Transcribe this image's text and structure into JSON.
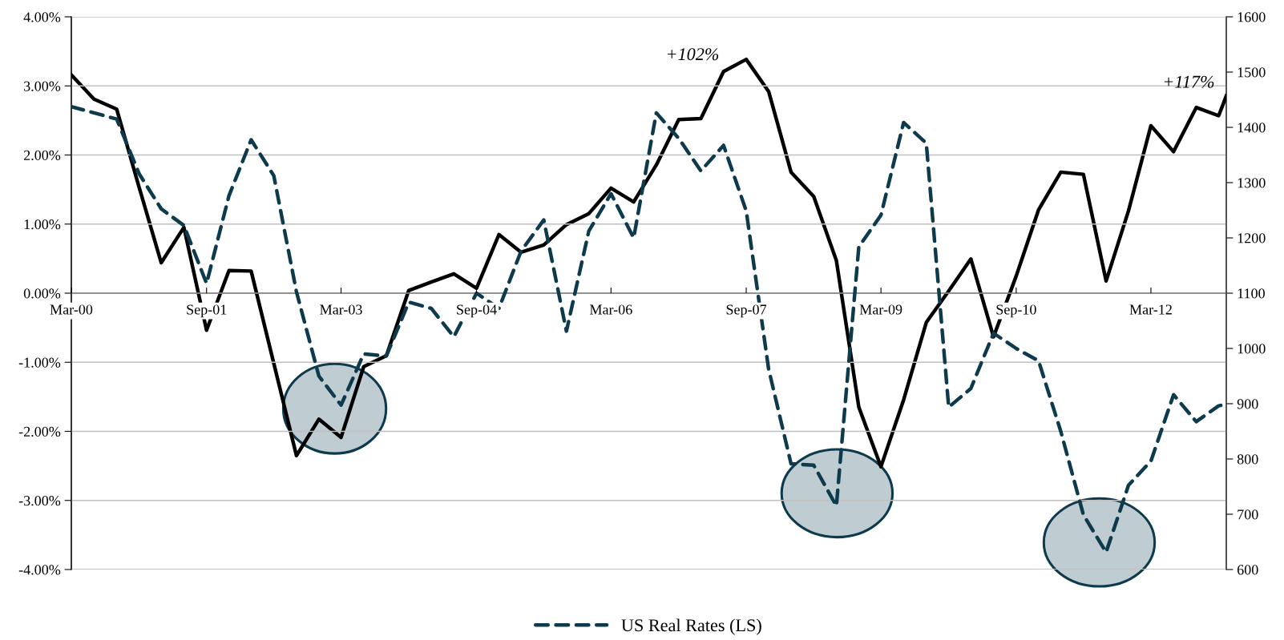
{
  "chart_data": {
    "type": "line",
    "x": [
      "2000-03",
      "2000-06",
      "2000-09",
      "2000-12",
      "2001-03",
      "2001-06",
      "2001-09",
      "2001-12",
      "2002-03",
      "2002-06",
      "2002-09",
      "2002-12",
      "2003-03",
      "2003-06",
      "2003-09",
      "2003-12",
      "2004-03",
      "2004-06",
      "2004-09",
      "2004-12",
      "2005-03",
      "2005-06",
      "2005-09",
      "2005-12",
      "2006-03",
      "2006-06",
      "2006-09",
      "2006-12",
      "2007-03",
      "2007-06",
      "2007-09",
      "2007-12",
      "2008-03",
      "2008-06",
      "2008-09",
      "2008-12",
      "2009-03",
      "2009-06",
      "2009-09",
      "2009-12",
      "2010-03",
      "2010-06",
      "2010-09",
      "2010-12",
      "2011-03",
      "2011-06",
      "2011-09",
      "2011-12",
      "2012-03",
      "2012-06",
      "2012-09",
      "2012-12",
      "2013-01"
    ],
    "series": [
      {
        "name": "US Real Rates (LS)",
        "color": "#0d3a4c",
        "line_style": "dashed",
        "values": [
          2.7,
          2.61,
          2.52,
          1.73,
          1.22,
          0.98,
          0.14,
          1.41,
          2.22,
          1.7,
          0.02,
          -1.2,
          -1.62,
          -0.88,
          -0.91,
          -0.13,
          -0.22,
          -0.63,
          0.0,
          -0.22,
          0.61,
          1.06,
          -0.55,
          0.9,
          1.44,
          0.8,
          2.61,
          2.24,
          1.77,
          2.14,
          1.19,
          -1.1,
          -2.47,
          -2.49,
          -3.08,
          0.67,
          1.13,
          2.47,
          2.17,
          -1.65,
          -1.38,
          -0.58,
          -0.8,
          -0.98,
          -2.0,
          -3.21,
          -3.75,
          -2.78,
          -2.43,
          -1.47,
          -1.86,
          -1.63,
          -1.61
        ]
      },
      {
        "color": "#000000",
        "line_style": "solid",
        "axis": "y2",
        "values": [
          1495,
          1451,
          1433,
          1292,
          1155,
          1219,
          1033,
          1141,
          1140,
          973,
          806,
          872,
          839,
          967,
          987,
          1105,
          1120,
          1135,
          1109,
          1206,
          1174,
          1187,
          1224,
          1244,
          1290,
          1265,
          1332,
          1414,
          1416,
          1501,
          1523,
          1465,
          1319,
          1275,
          1159,
          894,
          786,
          907,
          1047,
          1104,
          1162,
          1021,
          1131,
          1251,
          1319,
          1315,
          1122,
          1249,
          1403,
          1356,
          1436,
          1421,
          1457
        ]
      }
    ],
    "ylim": [
      -4,
      4
    ],
    "yticks": [
      {
        "value": -4,
        "label": "-4.00%"
      },
      {
        "value": -3,
        "label": "-3.00%"
      },
      {
        "value": -2,
        "label": "-2.00%"
      },
      {
        "value": -1,
        "label": "-1.00%"
      },
      {
        "value": 0,
        "label": "0.00%"
      },
      {
        "value": 1,
        "label": "1.00%"
      },
      {
        "value": 2,
        "label": "2.00%"
      },
      {
        "value": 3,
        "label": "3.00%"
      },
      {
        "value": 4,
        "label": "4.00%"
      }
    ],
    "y2lim": [
      600,
      1600
    ],
    "y2ticks": [
      600,
      700,
      800,
      900,
      1000,
      1100,
      1200,
      1300,
      1400,
      1500,
      1600
    ],
    "xlim": [
      "2000-03",
      "2013-01"
    ],
    "xticks": [
      {
        "value": "2000-03",
        "label": "Mar-00"
      },
      {
        "value": "2001-09",
        "label": "Sep-01"
      },
      {
        "value": "2003-03",
        "label": "Mar-03"
      },
      {
        "value": "2004-09",
        "label": "Sep-04"
      },
      {
        "value": "2006-03",
        "label": "Mar-06"
      },
      {
        "value": "2007-09",
        "label": "Sep-07"
      },
      {
        "value": "2009-03",
        "label": "Mar-09"
      },
      {
        "value": "2010-09",
        "label": "Sep-10"
      },
      {
        "value": "2012-03",
        "label": "Mar-12"
      }
    ],
    "annotations": [
      "+102%",
      "+117%"
    ],
    "grid": "y",
    "legend": "bottom"
  }
}
